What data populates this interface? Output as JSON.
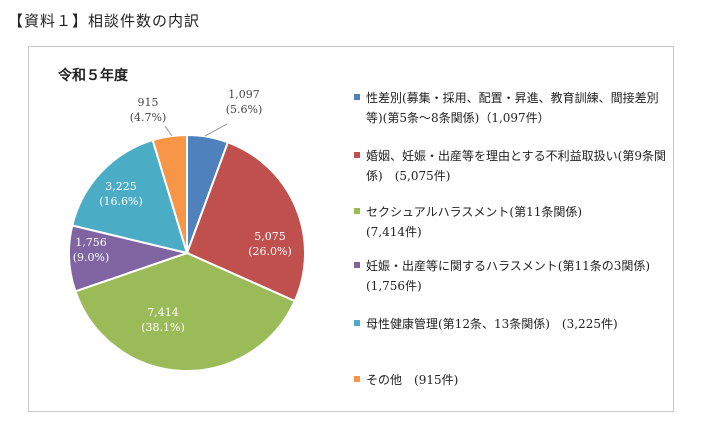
{
  "page_heading": "【資料１】相談件数の内訳",
  "chart_data": {
    "type": "pie",
    "title": "令和５年度",
    "slices": [
      {
        "label": "性差別(募集・採用、配置・昇進、教育訓練、間接差別等)(第5条～8条関係)",
        "value": 1097,
        "value_text": "1,097",
        "percent_text": "(5.6%)",
        "legend_value": "（1,097件）",
        "color": "#4f81bd"
      },
      {
        "label": "婚姻、妊娠・出産等を理由とする不利益取扱い(第9条関係)",
        "value": 5075,
        "value_text": "5,075",
        "percent_text": "(26.0%)",
        "legend_value": "(5,075件)",
        "color": "#c0504d"
      },
      {
        "label": "セクシュアルハラスメント(第11条関係)",
        "value": 7414,
        "value_text": "7,414",
        "percent_text": "(38.1%)",
        "legend_value": "(7,414件)",
        "color": "#9bbb59"
      },
      {
        "label": "妊娠・出産等に関するハラスメント(第11条の3関係)",
        "value": 1756,
        "value_text": "1,756",
        "percent_text": "(9.0%)",
        "legend_value": "(1,756件)",
        "color": "#8064a2"
      },
      {
        "label": "母性健康管理(第12条、13条関係)",
        "value": 3225,
        "value_text": "3,225",
        "percent_text": "(16.6%)",
        "legend_value": "(3,225件)",
        "color": "#4bacc6"
      },
      {
        "label": "その他",
        "value": 915,
        "value_text": "915",
        "percent_text": "(4.7%)",
        "legend_value": "(915件)",
        "color": "#f79646"
      }
    ],
    "legend_position": "right"
  }
}
